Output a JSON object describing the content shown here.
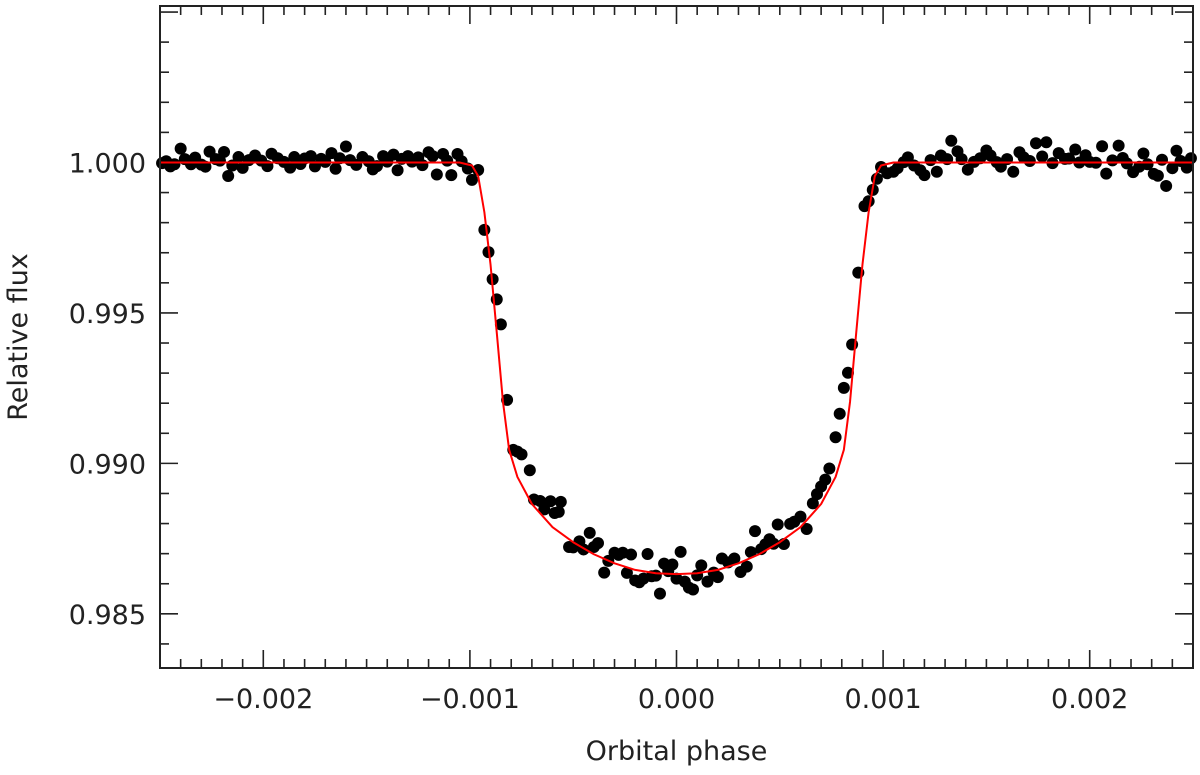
{
  "chart_data": {
    "type": "scatter",
    "xlabel": "Orbital phase",
    "ylabel": "Relative flux",
    "xlim": [
      -0.0025,
      0.0025
    ],
    "ylim": [
      0.9832,
      1.0052
    ],
    "x_ticks": [
      {
        "value": -0.002,
        "label": "−0.002"
      },
      {
        "value": -0.001,
        "label": "−0.001"
      },
      {
        "value": 0.0,
        "label": "0.000"
      },
      {
        "value": 0.001,
        "label": "0.001"
      },
      {
        "value": 0.002,
        "label": "0.002"
      }
    ],
    "y_ticks": [
      {
        "value": 0.985,
        "label": "0.985"
      },
      {
        "value": 0.99,
        "label": "0.990"
      },
      {
        "value": 0.995,
        "label": "0.995"
      },
      {
        "value": 1.0,
        "label": "1.000"
      }
    ],
    "grid": false,
    "marker_color": "#000000",
    "model_color": "#ff0000",
    "series": [
      {
        "kind": "points",
        "points": [
          [
            -0.00249,
            0.99998
          ],
          [
            -0.00247,
            1.00004
          ],
          [
            -0.00245,
            0.99987
          ],
          [
            -0.00243,
            0.99994
          ],
          [
            -0.0024,
            1.00046
          ],
          [
            -0.00238,
            1.00011
          ],
          [
            -0.00235,
            0.99994
          ],
          [
            -0.00233,
            1.00016
          ],
          [
            -0.0023,
            0.99993
          ],
          [
            -0.00228,
            0.99986
          ],
          [
            -0.00226,
            1.00036
          ],
          [
            -0.00223,
            1.00011
          ],
          [
            -0.00221,
            1.00006
          ],
          [
            -0.00219,
            1.00035
          ],
          [
            -0.00217,
            0.99955
          ],
          [
            -0.00215,
            0.9999
          ],
          [
            -0.00212,
            1.00018
          ],
          [
            -0.0021,
            0.99982
          ],
          [
            -0.00207,
            1.00008
          ],
          [
            -0.00204,
            1.00023
          ],
          [
            -0.00201,
            1.00006
          ],
          [
            -0.00198,
            0.99988
          ],
          [
            -0.00196,
            1.00029
          ],
          [
            -0.00193,
            1.00014
          ],
          [
            -0.0019,
            1.00002
          ],
          [
            -0.00187,
            0.99983
          ],
          [
            -0.00185,
            1.00018
          ],
          [
            -0.00182,
            0.99995
          ],
          [
            -0.0018,
            1.00013
          ],
          [
            -0.00177,
            1.00021
          ],
          [
            -0.00175,
            0.99987
          ],
          [
            -0.00172,
            1.00012
          ],
          [
            -0.0017,
            1.00002
          ],
          [
            -0.00167,
            1.00031
          ],
          [
            -0.00165,
            0.99979
          ],
          [
            -0.00163,
            1.00014
          ],
          [
            -0.0016,
            1.00053
          ],
          [
            -0.00158,
            1.00008
          ],
          [
            -0.00155,
            0.99992
          ],
          [
            -0.00152,
            1.00018
          ],
          [
            -0.00149,
            1.00004
          ],
          [
            -0.00147,
            0.99977
          ],
          [
            -0.00145,
            0.99988
          ],
          [
            -0.00142,
            1.00021
          ],
          [
            -0.0014,
            1.00003
          ],
          [
            -0.00137,
            1.00026
          ],
          [
            -0.00135,
            0.99974
          ],
          [
            -0.00133,
            1.00012
          ],
          [
            -0.0013,
            1.00021
          ],
          [
            -0.00128,
            1.00003
          ],
          [
            -0.00125,
            1.00017
          ],
          [
            -0.00123,
            0.99991
          ],
          [
            -0.0012,
            1.00034
          ],
          [
            -0.00118,
            1.00021
          ],
          [
            -0.00116,
            0.9996
          ],
          [
            -0.00113,
            1.00028
          ],
          [
            -0.00111,
            1.00006
          ],
          [
            -0.00109,
            0.99958
          ],
          [
            -0.00106,
            1.00028
          ],
          [
            -0.00104,
            1.00004
          ],
          [
            -0.00101,
            0.9998
          ],
          [
            -0.00099,
            0.99942
          ],
          [
            -0.00096,
            0.99975
          ],
          [
            -0.00093,
            0.99776
          ],
          [
            -0.00091,
            0.99702
          ],
          [
            -0.00089,
            0.99612
          ],
          [
            -0.00087,
            0.99545
          ],
          [
            -0.00085,
            0.99462
          ],
          [
            -0.00082,
            0.99211
          ],
          [
            -0.00079,
            0.99045
          ],
          [
            -0.00077,
            0.99039
          ],
          [
            -0.00075,
            0.9903
          ],
          [
            -0.00071,
            0.98977
          ],
          [
            -0.00069,
            0.9888
          ],
          [
            -0.00066,
            0.98875
          ],
          [
            -0.00064,
            0.98847
          ],
          [
            -0.00061,
            0.98874
          ],
          [
            -0.00059,
            0.98835
          ],
          [
            -0.00057,
            0.98839
          ],
          [
            -0.00056,
            0.98872
          ],
          [
            -0.00052,
            0.98722
          ],
          [
            -0.0005,
            0.98721
          ],
          [
            -0.00047,
            0.98741
          ],
          [
            -0.00045,
            0.98714
          ],
          [
            -0.00042,
            0.98769
          ],
          [
            -0.0004,
            0.98722
          ],
          [
            -0.00038,
            0.98735
          ],
          [
            -0.00035,
            0.98637
          ],
          [
            -0.00033,
            0.98676
          ],
          [
            -0.0003,
            0.98703
          ],
          [
            -0.00028,
            0.98696
          ],
          [
            -0.00026,
            0.98703
          ],
          [
            -0.00024,
            0.98636
          ],
          [
            -0.00022,
            0.98697
          ],
          [
            -0.0002,
            0.98611
          ],
          [
            -0.00018,
            0.98605
          ],
          [
            -0.00016,
            0.98617
          ],
          [
            -0.00014,
            0.98699
          ],
          [
            -0.00012,
            0.98625
          ],
          [
            -0.0001,
            0.98627
          ],
          [
            -8e-05,
            0.98567
          ],
          [
            -6e-05,
            0.98667
          ],
          [
            -4e-05,
            0.98642
          ],
          [
            -2e-05,
            0.98664
          ],
          [
            0.0,
            0.98617
          ],
          [
            2e-05,
            0.98706
          ],
          [
            4e-05,
            0.98607
          ],
          [
            6e-05,
            0.98587
          ],
          [
            8e-05,
            0.98581
          ],
          [
            0.0001,
            0.98628
          ],
          [
            0.00012,
            0.98661
          ],
          [
            0.00015,
            0.98607
          ],
          [
            0.00018,
            0.98637
          ],
          [
            0.0002,
            0.98622
          ],
          [
            0.00022,
            0.98684
          ],
          [
            0.00025,
            0.98671
          ],
          [
            0.00028,
            0.98684
          ],
          [
            0.00031,
            0.98639
          ],
          [
            0.00034,
            0.98657
          ],
          [
            0.00036,
            0.98705
          ],
          [
            0.00038,
            0.98775
          ],
          [
            0.00041,
            0.98715
          ],
          [
            0.00043,
            0.98731
          ],
          [
            0.00045,
            0.98748
          ],
          [
            0.00047,
            0.98733
          ],
          [
            0.00049,
            0.98797
          ],
          [
            0.00052,
            0.98732
          ],
          [
            0.00055,
            0.98799
          ],
          [
            0.00057,
            0.98806
          ],
          [
            0.0006,
            0.98823
          ],
          [
            0.00063,
            0.98782
          ],
          [
            0.00066,
            0.98867
          ],
          [
            0.00068,
            0.98898
          ],
          [
            0.0007,
            0.98923
          ],
          [
            0.00072,
            0.98946
          ],
          [
            0.00074,
            0.98983
          ],
          [
            0.00077,
            0.99087
          ],
          [
            0.00079,
            0.99165
          ],
          [
            0.00081,
            0.99251
          ],
          [
            0.00083,
            0.99301
          ],
          [
            0.00085,
            0.99395
          ],
          [
            0.00088,
            0.99634
          ],
          [
            0.00091,
            0.99855
          ],
          [
            0.00093,
            0.99871
          ],
          [
            0.00095,
            0.99909
          ],
          [
            0.00097,
            0.99946
          ],
          [
            0.00099,
            0.99985
          ],
          [
            0.00102,
            0.99964
          ],
          [
            0.00105,
            0.99969
          ],
          [
            0.00107,
            0.99981
          ],
          [
            0.0011,
            1.00001
          ],
          [
            0.00112,
            1.00017
          ],
          [
            0.00115,
            0.9999
          ],
          [
            0.00118,
            0.99974
          ],
          [
            0.0012,
            0.99958
          ],
          [
            0.00123,
            1.00008
          ],
          [
            0.00126,
            0.99969
          ],
          [
            0.00128,
            1.00023
          ],
          [
            0.00131,
            1.00011
          ],
          [
            0.00133,
            1.00072
          ],
          [
            0.00136,
            1.00037
          ],
          [
            0.00138,
            1.00011
          ],
          [
            0.00141,
            0.99976
          ],
          [
            0.00144,
            1.00002
          ],
          [
            0.00147,
            1.00014
          ],
          [
            0.0015,
            1.0004
          ],
          [
            0.00152,
            1.00023
          ],
          [
            0.00155,
            1.00001
          ],
          [
            0.00157,
            0.99986
          ],
          [
            0.0016,
            1.00011
          ],
          [
            0.00163,
            0.99969
          ],
          [
            0.00166,
            1.00034
          ],
          [
            0.00168,
            1.00017
          ],
          [
            0.00171,
            1.00005
          ],
          [
            0.00174,
            1.00064
          ],
          [
            0.00177,
            1.0002
          ],
          [
            0.00179,
            1.00067
          ],
          [
            0.00182,
            0.99998
          ],
          [
            0.00185,
            1.00031
          ],
          [
            0.00188,
            1.00012
          ],
          [
            0.0019,
            1.00013
          ],
          [
            0.00193,
            1.00043
          ],
          [
            0.00195,
            1.0
          ],
          [
            0.00198,
            1.00024
          ],
          [
            0.002,
            1.00002
          ],
          [
            0.00203,
            0.99999
          ],
          [
            0.00206,
            1.00054
          ],
          [
            0.00208,
            0.99963
          ],
          [
            0.00211,
            1.00007
          ],
          [
            0.00214,
            1.00056
          ],
          [
            0.00216,
            1.00015
          ],
          [
            0.00218,
            0.99997
          ],
          [
            0.00221,
            0.99968
          ],
          [
            0.00224,
            0.99986
          ],
          [
            0.00226,
            1.0003
          ],
          [
            0.00228,
            0.99994
          ],
          [
            0.00231,
            0.99962
          ],
          [
            0.00233,
            0.99956
          ],
          [
            0.00235,
            1.00009
          ],
          [
            0.00237,
            0.99922
          ],
          [
            0.0024,
            0.99981
          ],
          [
            0.00242,
            1.00039
          ],
          [
            0.00244,
            1.00005
          ],
          [
            0.00247,
            0.99983
          ],
          [
            0.00249,
            1.00014
          ]
        ]
      },
      {
        "kind": "model",
        "points": [
          [
            -0.0025,
            1.0
          ],
          [
            -0.00105,
            1.0
          ],
          [
            -0.00099,
            0.9999
          ],
          [
            -0.00096,
            0.99955
          ],
          [
            -0.00093,
            0.99835
          ],
          [
            -0.0009,
            0.9966
          ],
          [
            -0.00087,
            0.99435
          ],
          [
            -0.00084,
            0.99205
          ],
          [
            -0.00081,
            0.99045
          ],
          [
            -0.00077,
            0.98955
          ],
          [
            -0.0007,
            0.98865
          ],
          [
            -0.0006,
            0.98788
          ],
          [
            -0.0005,
            0.98738
          ],
          [
            -0.0004,
            0.98698
          ],
          [
            -0.0003,
            0.98668
          ],
          [
            -0.0002,
            0.98646
          ],
          [
            -0.0001,
            0.98635
          ],
          [
            0.0,
            0.98632
          ],
          [
            0.0001,
            0.98635
          ],
          [
            0.0002,
            0.98646
          ],
          [
            0.0003,
            0.98668
          ],
          [
            0.0004,
            0.98698
          ],
          [
            0.0005,
            0.98738
          ],
          [
            0.0006,
            0.98788
          ],
          [
            0.0007,
            0.98865
          ],
          [
            0.00077,
            0.98955
          ],
          [
            0.00081,
            0.99045
          ],
          [
            0.00084,
            0.99205
          ],
          [
            0.00087,
            0.99435
          ],
          [
            0.0009,
            0.9966
          ],
          [
            0.00093,
            0.99835
          ],
          [
            0.00096,
            0.99955
          ],
          [
            0.00099,
            0.9999
          ],
          [
            0.00105,
            1.0
          ],
          [
            0.0025,
            1.0
          ]
        ]
      }
    ]
  }
}
